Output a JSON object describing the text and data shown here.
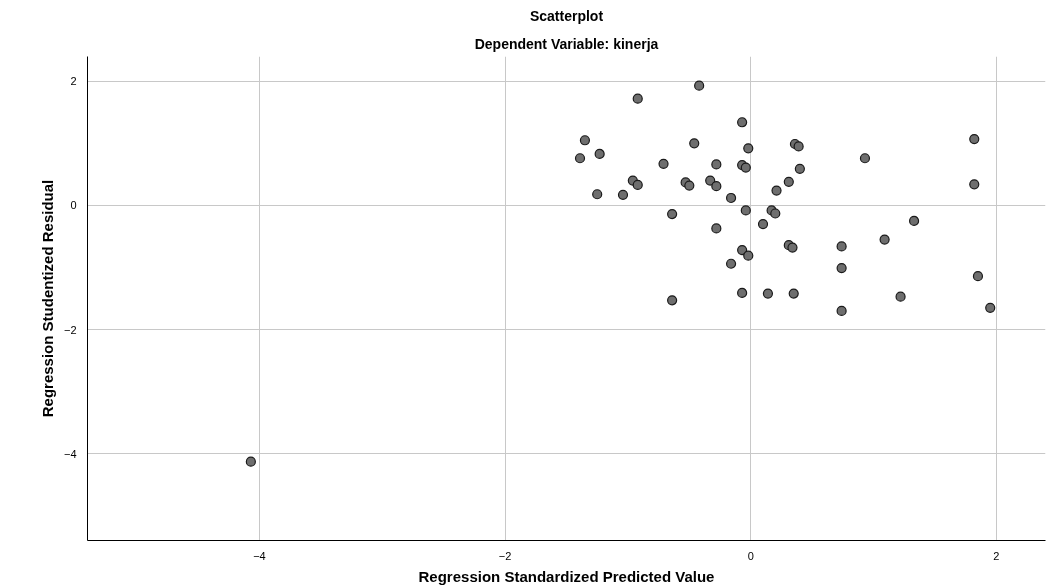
{
  "chart_data": {
    "type": "scatter",
    "title": "Scatterplot",
    "subtitle": "Dependent Variable: kinerja",
    "xlabel": "Regression Standardized Predicted Value",
    "ylabel": "Regression Studentized Residual",
    "xlim": [
      -5.4,
      2.4
    ],
    "ylim": [
      -5.4,
      2.4
    ],
    "xticks": [
      -4,
      -2,
      0,
      2
    ],
    "yticks": [
      -4,
      -2,
      0,
      2
    ],
    "grid": true,
    "marker": "circle",
    "series": [
      {
        "color": "#6e6e6e",
        "x": [
          -0.42,
          -0.92,
          -0.07,
          -1.35,
          -0.46,
          -0.02,
          -1.23,
          -1.39,
          -0.71,
          -0.28,
          -0.07,
          -0.04,
          -0.96,
          -0.92,
          -0.53,
          -0.5,
          -0.33,
          -0.28,
          -1.25,
          -1.04,
          -0.16,
          0.21,
          0.31,
          -0.64,
          -0.04,
          0.17,
          0.2,
          0.1,
          -0.28,
          0.31,
          0.34,
          -0.07,
          -0.02,
          -0.16,
          -0.07,
          0.14,
          0.35,
          -0.64,
          0.36,
          0.39,
          0.4,
          0.93,
          1.82,
          1.82,
          1.33,
          1.09,
          0.74,
          0.74,
          1.85,
          1.22,
          0.74,
          1.95,
          -4.07
        ],
        "values": [
          1.93,
          1.72,
          1.34,
          1.05,
          1.0,
          0.92,
          0.83,
          0.76,
          0.67,
          0.66,
          0.65,
          0.61,
          0.4,
          0.33,
          0.37,
          0.32,
          0.4,
          0.31,
          0.18,
          0.17,
          0.12,
          0.24,
          0.38,
          -0.14,
          -0.08,
          -0.08,
          -0.13,
          -0.3,
          -0.37,
          -0.64,
          -0.68,
          -0.72,
          -0.81,
          -0.94,
          -1.41,
          -1.42,
          -1.42,
          -1.53,
          0.99,
          0.95,
          0.59,
          0.76,
          1.07,
          0.34,
          -0.25,
          -0.55,
          -0.66,
          -1.01,
          -1.14,
          -1.47,
          -1.7,
          -1.65,
          -4.13
        ]
      }
    ]
  }
}
